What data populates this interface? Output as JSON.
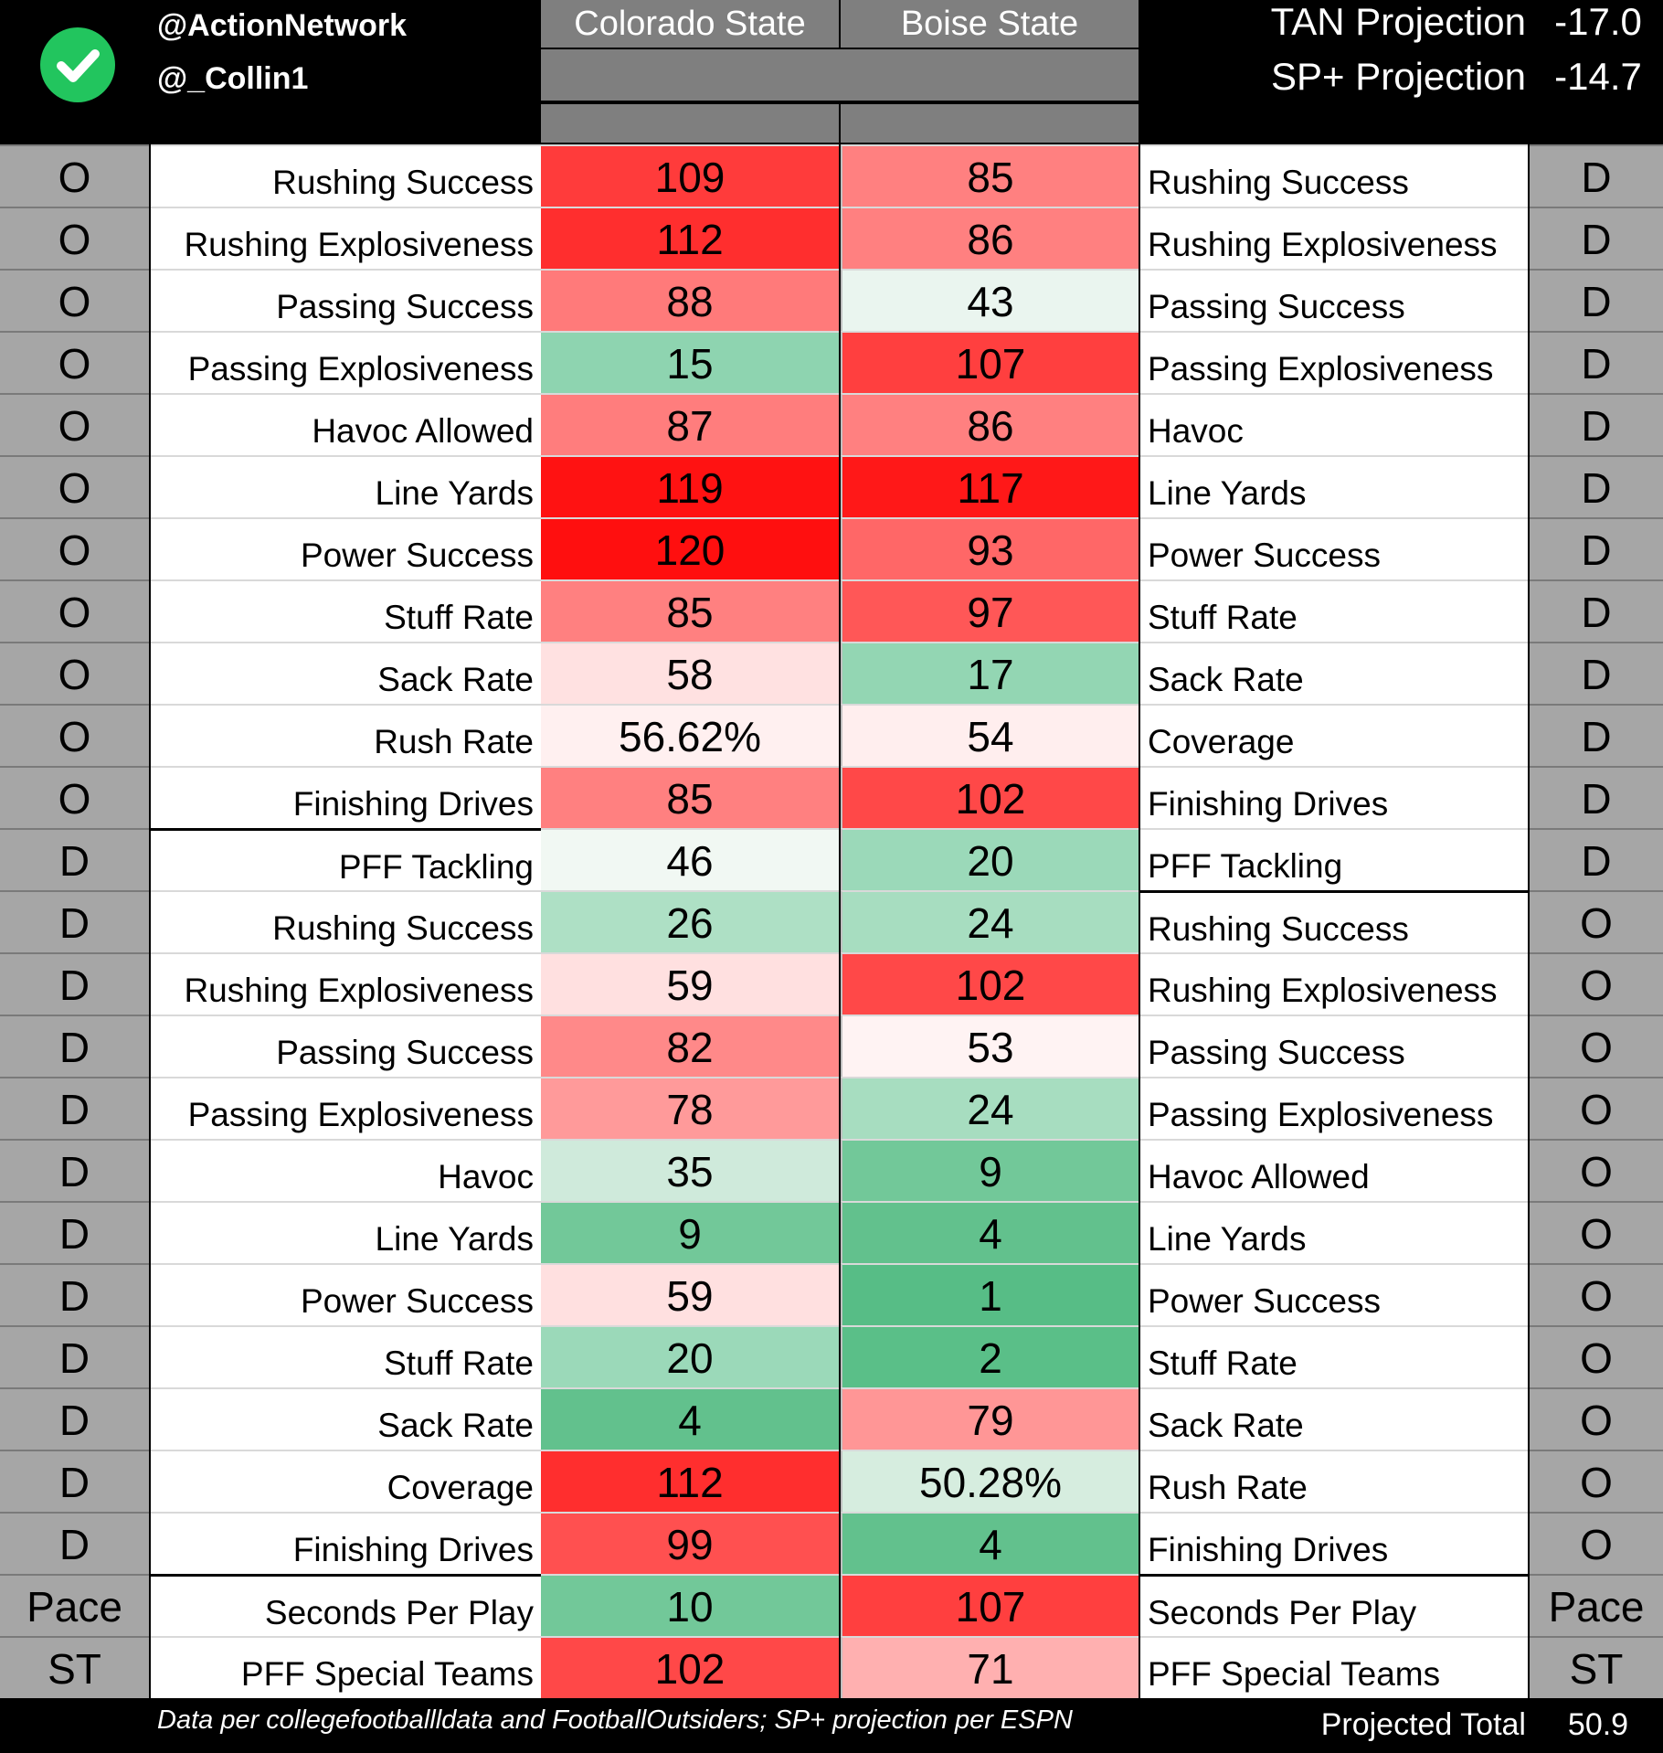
{
  "header": {
    "handle1": "@ActionNetwork",
    "handle2": "@_Collin1",
    "team_left": "Colorado State",
    "team_right": "Boise State",
    "projections": [
      {
        "label": "TAN Projection",
        "value": "-17.0"
      },
      {
        "label": "SP+ Projection",
        "value": "-14.7"
      }
    ]
  },
  "rows": [
    {
      "ls": "O",
      "ll": "Rushing Success",
      "v1": "109",
      "v2": "85",
      "rl": "Rushing Success",
      "rs": "D",
      "c1": "#ff3b3b",
      "c2": "#ff8080"
    },
    {
      "ls": "O",
      "ll": "Rushing Explosiveness",
      "v1": "112",
      "v2": "86",
      "rl": "Rushing Explosiveness",
      "rs": "D",
      "c1": "#ff2e2e",
      "c2": "#ff8080"
    },
    {
      "ls": "O",
      "ll": "Passing Success",
      "v1": "88",
      "v2": "43",
      "rl": "Passing Success",
      "rs": "D",
      "c1": "#ff7a7a",
      "c2": "#eaf5ef"
    },
    {
      "ls": "O",
      "ll": "Passing Explosiveness",
      "v1": "15",
      "v2": "107",
      "rl": "Passing Explosiveness",
      "rs": "D",
      "c1": "#8ed4b0",
      "c2": "#ff3f3f"
    },
    {
      "ls": "O",
      "ll": "Havoc Allowed",
      "v1": "87",
      "v2": "86",
      "rl": "Havoc",
      "rs": "D",
      "c1": "#ff7d7d",
      "c2": "#ff8080"
    },
    {
      "ls": "O",
      "ll": "Line Yards",
      "v1": "119",
      "v2": "117",
      "rl": "Line Yards",
      "rs": "D",
      "c1": "#ff1212",
      "c2": "#ff1818"
    },
    {
      "ls": "O",
      "ll": "Power Success",
      "v1": "120",
      "v2": "93",
      "rl": "Power Success",
      "rs": "D",
      "c1": "#ff0f0f",
      "c2": "#ff6767"
    },
    {
      "ls": "O",
      "ll": "Stuff Rate",
      "v1": "85",
      "v2": "97",
      "rl": "Stuff Rate",
      "rs": "D",
      "c1": "#ff8080",
      "c2": "#ff5757"
    },
    {
      "ls": "O",
      "ll": "Sack Rate",
      "v1": "58",
      "v2": "17",
      "rl": "Sack Rate",
      "rs": "D",
      "c1": "#ffe1e1",
      "c2": "#93d6b3"
    },
    {
      "ls": "O",
      "ll": "Rush Rate",
      "v1": "56.62%",
      "v2": "54",
      "rl": "Coverage",
      "rs": "D",
      "c1": "#fff0f0",
      "c2": "#ffeeee"
    },
    {
      "ls": "O",
      "ll": "Finishing Drives",
      "v1": "85",
      "v2": "102",
      "rl": "Finishing Drives",
      "rs": "D",
      "c1": "#ff8080",
      "c2": "#ff4848"
    },
    {
      "ls": "D",
      "ll": "PFF Tackling",
      "v1": "46",
      "v2": "20",
      "rl": "PFF Tackling",
      "rs": "D",
      "c1": "#f1f8f3",
      "c2": "#9bd9b9"
    },
    {
      "ls": "D",
      "ll": "Rushing Success",
      "v1": "26",
      "v2": "24",
      "rl": "Rushing Success",
      "rs": "O",
      "c1": "#aee0c5",
      "c2": "#a7ddc0"
    },
    {
      "ls": "D",
      "ll": "Rushing Explosiveness",
      "v1": "59",
      "v2": "102",
      "rl": "Rushing Explosiveness",
      "rs": "O",
      "c1": "#ffe0e0",
      "c2": "#ff4848"
    },
    {
      "ls": "D",
      "ll": "Passing Success",
      "v1": "82",
      "v2": "53",
      "rl": "Passing Success",
      "rs": "O",
      "c1": "#ff8989",
      "c2": "#fff3f3"
    },
    {
      "ls": "D",
      "ll": "Passing Explosiveness",
      "v1": "78",
      "v2": "24",
      "rl": "Passing Explosiveness",
      "rs": "O",
      "c1": "#ff9a9a",
      "c2": "#a7ddc0"
    },
    {
      "ls": "D",
      "ll": "Havoc",
      "v1": "35",
      "v2": "9",
      "rl": "Havoc Allowed",
      "rs": "O",
      "c1": "#cfeadb",
      "c2": "#72c899"
    },
    {
      "ls": "D",
      "ll": "Line Yards",
      "v1": "9",
      "v2": "4",
      "rl": "Line Yards",
      "rs": "O",
      "c1": "#72c899",
      "c2": "#62c18d"
    },
    {
      "ls": "D",
      "ll": "Power Success",
      "v1": "59",
      "v2": "1",
      "rl": "Power Success",
      "rs": "O",
      "c1": "#ffe0e0",
      "c2": "#57bd86"
    },
    {
      "ls": "D",
      "ll": "Stuff Rate",
      "v1": "20",
      "v2": "2",
      "rl": "Stuff Rate",
      "rs": "O",
      "c1": "#9bd9b9",
      "c2": "#5abf88"
    },
    {
      "ls": "D",
      "ll": "Sack Rate",
      "v1": "4",
      "v2": "79",
      "rl": "Sack Rate",
      "rs": "O",
      "c1": "#62c18d",
      "c2": "#ff9696"
    },
    {
      "ls": "D",
      "ll": "Coverage",
      "v1": "112",
      "v2": "50.28%",
      "rl": "Rush Rate",
      "rs": "O",
      "c1": "#ff2e2e",
      "c2": "#d6eddf"
    },
    {
      "ls": "D",
      "ll": "Finishing Drives",
      "v1": "99",
      "v2": "4",
      "rl": "Finishing Drives",
      "rs": "O",
      "c1": "#ff5050",
      "c2": "#62c18d"
    },
    {
      "ls": "Pace",
      "ll": "Seconds Per Play",
      "v1": "10",
      "v2": "107",
      "rl": "Seconds Per Play",
      "rs": "Pace",
      "c1": "#72c899",
      "c2": "#ff3f3f"
    },
    {
      "ls": "ST",
      "ll": "PFF Special Teams",
      "v1": "102",
      "v2": "71",
      "rl": "PFF Special Teams",
      "rs": "ST",
      "c1": "#ff4848",
      "c2": "#ffb0b0"
    }
  ],
  "footer": {
    "note": "Data per collegefootballldata and FootballOutsiders; SP+ projection per ESPN",
    "total_label": "Projected Total",
    "total_value": "50.9"
  }
}
